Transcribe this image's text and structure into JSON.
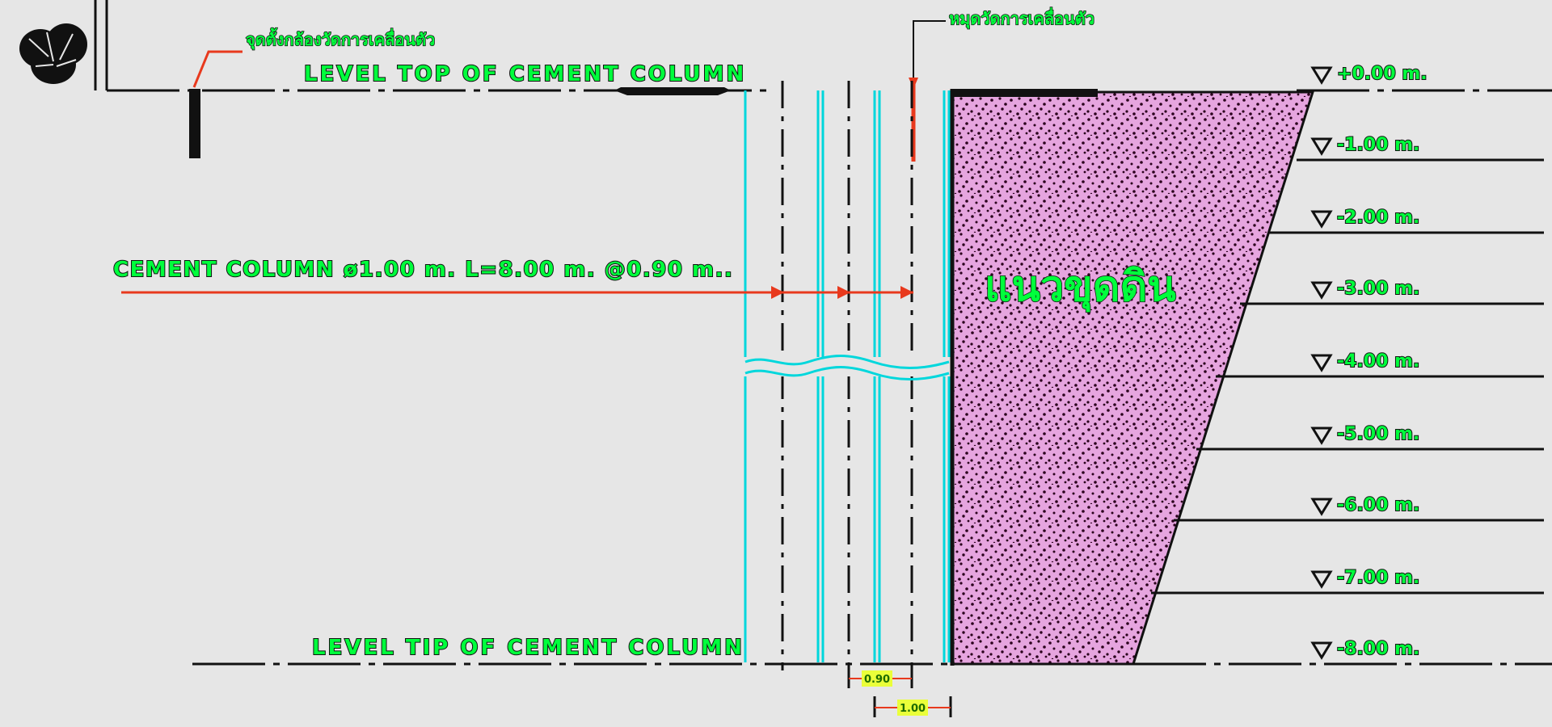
{
  "labels": {
    "camera_point": "จุดตั้งกล้องวัดการเคลื่อนตัว",
    "survey_peg": "หมุดวัดการเคลื่อนตัว",
    "top_level": "LEVEL TOP OF CEMENT COLUMN",
    "tip_level": "LEVEL TIP OF CEMENT COLUMN",
    "cement_column": "CEMENT COLUMN ø1.00 m. L=8.00 m. @0.90 m..",
    "soil_mass": "แนวขุดดิน",
    "dim_spacing": "0.90",
    "dim_diameter": "1.00"
  },
  "levels": [
    "+0.00 m.",
    "-1.00 m.",
    "-2.00 m.",
    "-3.00 m.",
    "-4.00 m.",
    "-5.00 m.",
    "-6.00 m.",
    "-7.00 m.",
    "-8.00 m."
  ],
  "colors": {
    "background": "#e6e6e6",
    "line": "#111111",
    "column": "#00d7dc",
    "leader": "#e8391d",
    "label_fill": "#00ff3c",
    "soil_fill": "#e6a5df",
    "soil_dots": "#2a001c",
    "dim_box": "#eaff3a"
  },
  "icons": [
    "tree-icon",
    "level-marker-icon",
    "arrow-icon"
  ]
}
